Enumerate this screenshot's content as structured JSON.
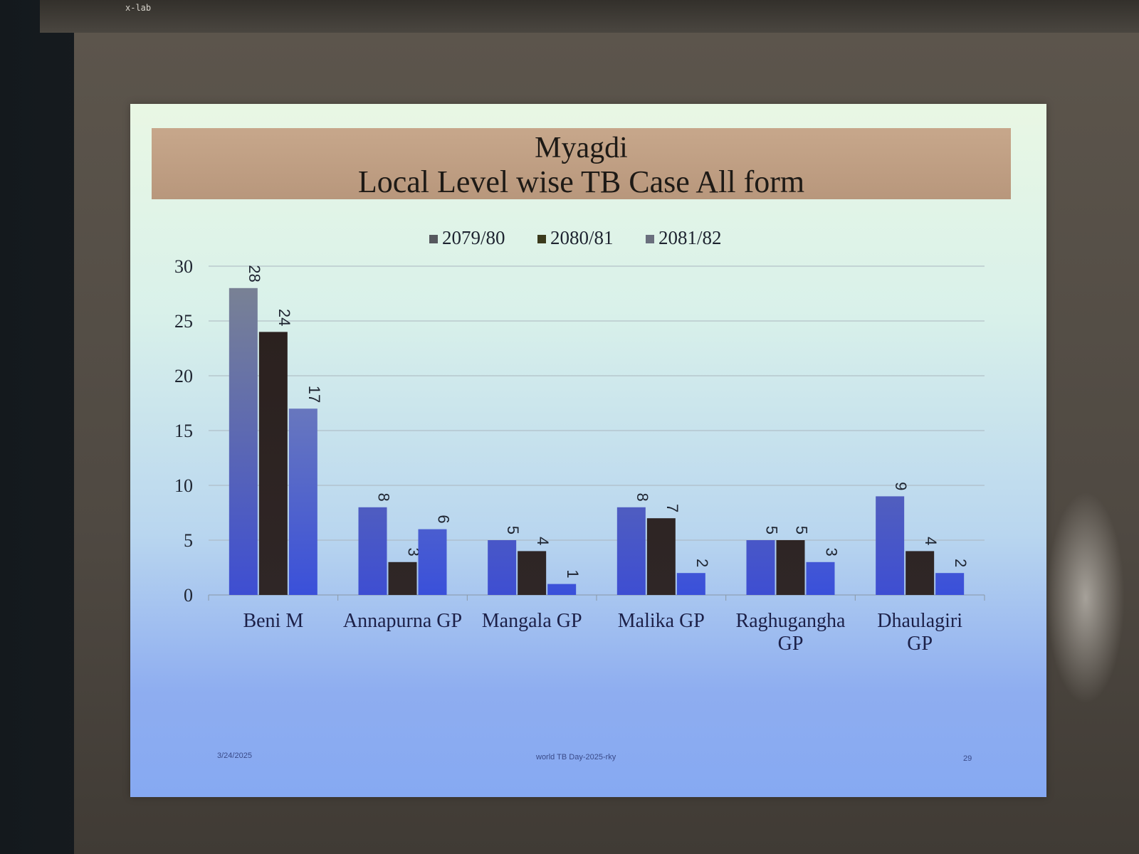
{
  "topbar": {
    "text": "x-lab"
  },
  "slide": {
    "title_line1": "Myagdi",
    "title_line2": "Local Level wise TB Case All form",
    "footer_date": "3/24/2025",
    "footer_center": "world TB Day-2025-rky",
    "footer_page": "29"
  },
  "colors": {
    "series_2079_80": "#3f4fcf",
    "series_2080_81": "#2b2220",
    "series_2081_82": "#3a4fd8",
    "title_band": "#bf9f84"
  },
  "chart_data": {
    "type": "bar",
    "title": "Myagdi\nLocal Level wise TB Case All form",
    "categories": [
      "Beni M",
      "Annapurna GP",
      "Mangala GP",
      "Malika GP",
      "Raghugangha GP",
      "Dhaulagiri GP"
    ],
    "series": [
      {
        "name": "2079/80",
        "values": [
          28,
          8,
          5,
          8,
          5,
          9
        ]
      },
      {
        "name": "2080/81",
        "values": [
          24,
          3,
          4,
          7,
          5,
          4
        ]
      },
      {
        "name": "2081/82",
        "values": [
          17,
          6,
          1,
          2,
          3,
          2
        ]
      }
    ],
    "ylim": [
      0,
      30
    ],
    "yticks": [
      0,
      5,
      10,
      15,
      20,
      25,
      30
    ],
    "grid": true,
    "legend": "top-center",
    "data_labels": true
  }
}
